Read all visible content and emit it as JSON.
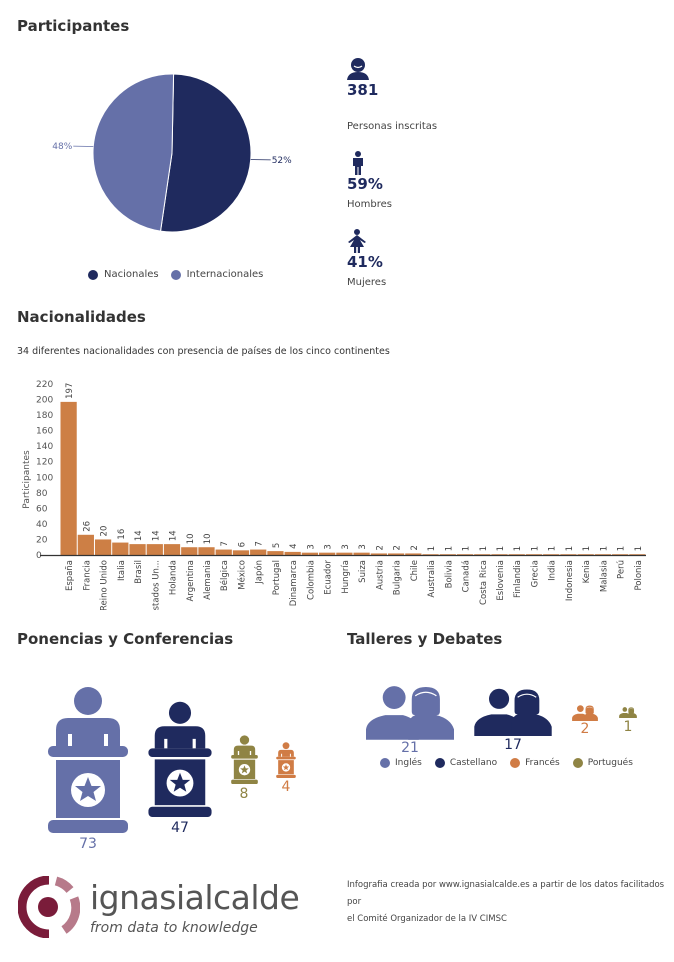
{
  "colors": {
    "navy": "#1f2a5e",
    "lavender": "#6570a8",
    "orange": "#d07c45",
    "olive": "#8f8444",
    "bar": "#cd7f45",
    "logo_dark": "#7a1c3a",
    "logo_light": "#b77a8a"
  },
  "participantes": {
    "title": "Participantes",
    "pie": {
      "type": "pie",
      "slices": [
        {
          "name": "Nacionales",
          "value": 52,
          "label": "52%",
          "color": "#1f2a5e"
        },
        {
          "name": "Internacionales",
          "value": 48,
          "label": "48%",
          "color": "#6570a8"
        }
      ],
      "legend_position": "bottom"
    },
    "stats": [
      {
        "icon": "person-bust-icon",
        "value": "381",
        "label": "Personas inscritas"
      },
      {
        "icon": "man-icon",
        "value": "59%",
        "label": "Hombres"
      },
      {
        "icon": "woman-icon",
        "value": "41%",
        "label": "Mujeres"
      }
    ]
  },
  "nacionalidades": {
    "title": "Nacionalidades",
    "subtitle": "34  diferentes nacionalidades con presencia de países de los cinco continentes"
  },
  "chart_data": {
    "type": "bar",
    "title": "",
    "xlabel": "",
    "ylabel": "Participantes",
    "ylim": [
      0,
      220
    ],
    "yticks": [
      0,
      20,
      40,
      60,
      80,
      100,
      120,
      140,
      160,
      180,
      200,
      220
    ],
    "grid": false,
    "categories": [
      "España",
      "Francia",
      "Reino Unido",
      "Italia",
      "Brasil",
      "Estados Un...",
      "Holanda",
      "Argentina",
      "Alemania",
      "Bélgica",
      "México",
      "Japón",
      "Portugal",
      "Dinamarca",
      "Colombia",
      "Ecuador",
      "Hungría",
      "Suiza",
      "Austria",
      "Bulgaria",
      "Chile",
      "Australia",
      "Bolivia",
      "Canadá",
      "Costa Rica",
      "Eslovenia",
      "Finlandia",
      "Grecia",
      "India",
      "Indonesia",
      "Kenia",
      "Malasia",
      "Perú",
      "Polonia"
    ],
    "values": [
      197,
      26,
      20,
      16,
      14,
      14,
      14,
      10,
      10,
      7,
      6,
      7,
      5,
      4,
      3,
      3,
      3,
      3,
      2,
      2,
      2,
      1,
      1,
      1,
      1,
      1,
      1,
      1,
      1,
      1,
      1,
      1,
      1,
      1
    ]
  },
  "ponencias": {
    "title": "Ponencias y Conferencias",
    "items": [
      {
        "value": "73",
        "color": "#6570a8"
      },
      {
        "value": "47",
        "color": "#1f2a5e"
      },
      {
        "value": "8",
        "color": "#8f8444"
      },
      {
        "value": "4",
        "color": "#d07c45"
      }
    ]
  },
  "talleres": {
    "title": "Talleres y Debates",
    "items": [
      {
        "value": "21",
        "color": "#6570a8",
        "name": "Inglés"
      },
      {
        "value": "17",
        "color": "#1f2a5e",
        "name": "Castellano"
      },
      {
        "value": "2",
        "color": "#d07c45",
        "name": "Francés"
      },
      {
        "value": "1",
        "color": "#8f8444",
        "name": "Portugués"
      }
    ]
  },
  "footer": {
    "logo_name": "ignasialcalde",
    "logo_tagline": "from data to knowledge",
    "credit_line1": "Infografia creada por www.ignasialcalde.es  a partir de los datos facilitados por",
    "credit_line2": "el Comité Organizador de la IV CIMSC"
  }
}
